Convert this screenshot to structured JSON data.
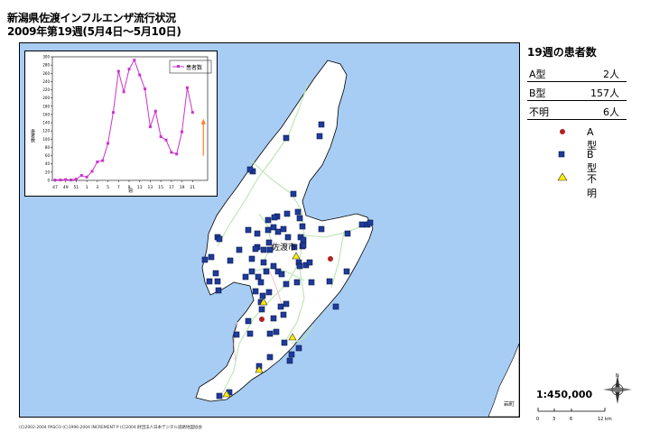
{
  "title": {
    "line1": "新潟県佐渡インフルエンザ流行状況",
    "line2": "2009年第19週(5月4日～5月10日)"
  },
  "map": {
    "colors": {
      "sea": "#a8cdf4",
      "land": "#ffffff",
      "roads": "#b9e6b0",
      "outline": "#000000"
    },
    "labels": {
      "city": "佐渡市",
      "corner": "岩町"
    },
    "markers_a": [
      [
        365,
        286
      ],
      [
        289,
        353
      ]
    ],
    "markers_b": [
      [
        316,
        152
      ],
      [
        353,
        150
      ],
      [
        355,
        137
      ],
      [
        279,
        189
      ],
      [
        276,
        187
      ],
      [
        324,
        214
      ],
      [
        317,
        236
      ],
      [
        329,
        234
      ],
      [
        331,
        241
      ],
      [
        334,
        250
      ],
      [
        332,
        262
      ],
      [
        335,
        265
      ],
      [
        306,
        239
      ],
      [
        296,
        243
      ],
      [
        334,
        272
      ],
      [
        318,
        262
      ],
      [
        325,
        273
      ],
      [
        330,
        290
      ],
      [
        338,
        293
      ],
      [
        342,
        290
      ],
      [
        296,
        254
      ],
      [
        302,
        251
      ],
      [
        307,
        256
      ],
      [
        297,
        268
      ],
      [
        291,
        276
      ],
      [
        284,
        273
      ],
      [
        282,
        275
      ],
      [
        298,
        276
      ],
      [
        291,
        290
      ],
      [
        294,
        300
      ],
      [
        302,
        294
      ],
      [
        307,
        300
      ],
      [
        311,
        303
      ],
      [
        316,
        314
      ],
      [
        328,
        312
      ],
      [
        331,
        294
      ],
      [
        335,
        271
      ],
      [
        278,
        286
      ],
      [
        278,
        300
      ],
      [
        285,
        306
      ],
      [
        288,
        312
      ],
      [
        282,
        322
      ],
      [
        290,
        327
      ],
      [
        288,
        334
      ],
      [
        289,
        342
      ],
      [
        297,
        323
      ],
      [
        316,
        336
      ],
      [
        310,
        339
      ],
      [
        313,
        348
      ],
      [
        302,
        352
      ],
      [
        274,
        355
      ],
      [
        276,
        369
      ],
      [
        305,
        367
      ],
      [
        314,
        379
      ],
      [
        322,
        392
      ],
      [
        330,
        385
      ],
      [
        320,
        399
      ],
      [
        298,
        369
      ],
      [
        298,
        395
      ],
      [
        355,
        253
      ],
      [
        384,
        258
      ],
      [
        400,
        248
      ],
      [
        406,
        248
      ],
      [
        409,
        246
      ],
      [
        233,
        284
      ],
      [
        226,
        287
      ],
      [
        231,
        311
      ],
      [
        240,
        311
      ],
      [
        241,
        321
      ],
      [
        238,
        302
      ],
      [
        254,
        288
      ],
      [
        264,
        276
      ],
      [
        271,
        306
      ],
      [
        240,
        262
      ],
      [
        242,
        264
      ],
      [
        344,
        312
      ],
      [
        371,
        339
      ],
      [
        383,
        300
      ],
      [
        364,
        311
      ],
      [
        261,
        370
      ],
      [
        242,
        438
      ],
      [
        253,
        434
      ],
      [
        286,
        405
      ],
      [
        274,
        254
      ],
      [
        284,
        258
      ],
      [
        303,
        240
      ],
      [
        313,
        253
      ]
    ],
    "markers_u": [
      [
        327,
        283
      ],
      [
        291,
        334
      ],
      [
        323,
        373
      ],
      [
        286,
        409
      ],
      [
        250,
        436
      ]
    ]
  },
  "chart": {
    "legend_label": "患者数",
    "ylabel": "患者数",
    "xlabel": "週",
    "colors": {
      "line": "#cc33cc",
      "arrow": "#ff7f27"
    }
  },
  "chart_data": {
    "type": "line",
    "title": "",
    "x_tick_labels": [
      "47",
      "49",
      "51",
      "1",
      "3",
      "5",
      "7",
      "9",
      "11",
      "13",
      "15",
      "17",
      "19",
      "21"
    ],
    "y_tick_labels": [
      "0",
      "20",
      "40",
      "60",
      "80",
      "100",
      "120",
      "140",
      "160",
      "180",
      "200",
      "220",
      "240",
      "260",
      "280",
      "300"
    ],
    "ylim": [
      0,
      300
    ],
    "series": [
      {
        "name": "患者数",
        "values": [
          1,
          1,
          2,
          1,
          3,
          12,
          8,
          22,
          45,
          48,
          90,
          165,
          265,
          215,
          270,
          292,
          256,
          222,
          130,
          168,
          106,
          98,
          68,
          64,
          118,
          225,
          165
        ]
      }
    ]
  },
  "panel": {
    "title": "19週の患者数",
    "rows": [
      {
        "label": "A型",
        "value": "2人"
      },
      {
        "label": "B型",
        "value": "157人"
      },
      {
        "label": "不明",
        "value": "6人"
      }
    ]
  },
  "legend": {
    "a_label": "A型",
    "b_label": "B型",
    "u_label": "不明",
    "colors": {
      "a": "#b22222",
      "b": "#1f3b9b",
      "u": "#ffee00"
    }
  },
  "scale": {
    "ratio": "1:450,000",
    "ticks": [
      "0",
      "3",
      "6",
      "12 km"
    ]
  },
  "copyright": "(C)2002-2004 PASCO (C)1996-2004 INCREMENT P (C)2004 財団法人日本デジタル道路地図協会"
}
